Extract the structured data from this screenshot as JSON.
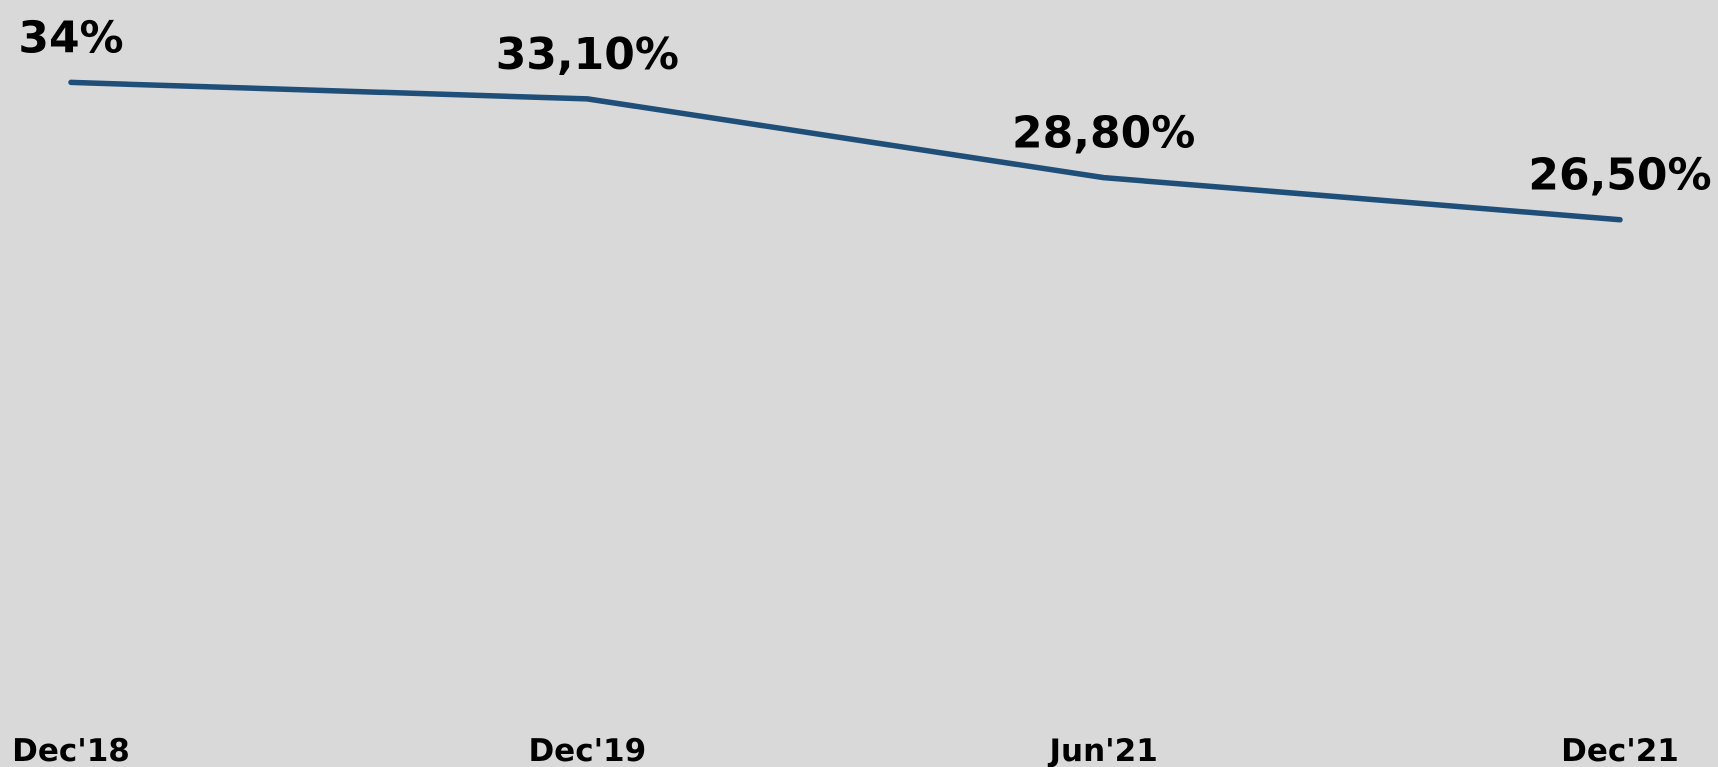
{
  "chart_data": {
    "type": "line",
    "categories": [
      "Dec'18",
      "Dec'19",
      "Jun'21",
      "Dec'21"
    ],
    "series": [
      {
        "color": "#1f4e79",
        "values": [
          34,
          33.1,
          28.8,
          26.5
        ],
        "value_labels": [
          "34%",
          "33,10%",
          "28,80%",
          "26,50%"
        ]
      }
    ],
    "ylim": [
      0,
      38.5
    ]
  }
}
